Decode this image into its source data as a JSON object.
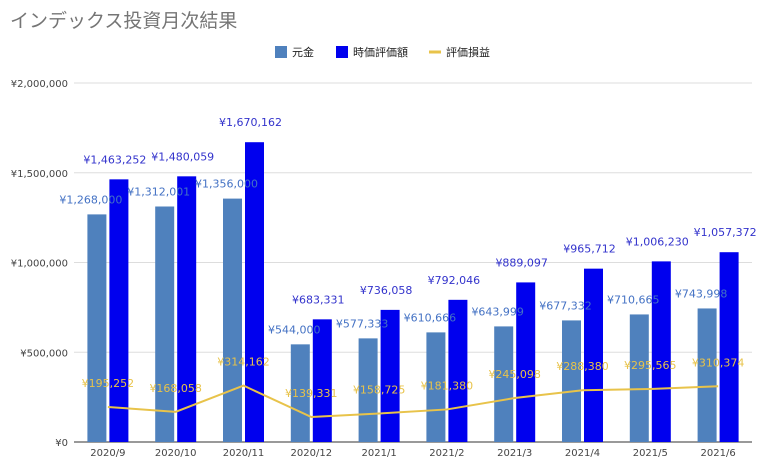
{
  "title": "インデックス投資月次結果",
  "colors": {
    "principal": "#4f81bd",
    "market_value": "#0000ee",
    "pnl": "#e8c34a",
    "principal_label": "#4472c4",
    "market_label": "#3333cc",
    "pnl_label": "#e8c34a"
  },
  "chart_data": {
    "type": "bar",
    "title": "インデックス投資月次結果",
    "categories": [
      "2020/9",
      "2020/10",
      "2020/11",
      "2020/12",
      "2021/1",
      "2021/2",
      "2021/3",
      "2021/4",
      "2021/5",
      "2021/6"
    ],
    "series": [
      {
        "name": "元金",
        "kind": "bar",
        "values": [
          1268000,
          1312001,
          1356000,
          544000,
          577333,
          610666,
          643999,
          677332,
          710665,
          743998
        ],
        "labels": [
          "¥1,268,000",
          "¥1,312,001",
          "¥1,356,000",
          "¥544,000",
          "¥577,333",
          "¥610,666",
          "¥643,999",
          "¥677,332",
          "¥710,665",
          "¥743,998"
        ]
      },
      {
        "name": "時価評価額",
        "kind": "bar",
        "values": [
          1463252,
          1480059,
          1670162,
          683331,
          736058,
          792046,
          889097,
          965712,
          1006230,
          1057372
        ],
        "labels": [
          "¥1,463,252",
          "¥1,480,059",
          "¥1,670,162",
          "¥683,331",
          "¥736,058",
          "¥792,046",
          "¥889,097",
          "¥965,712",
          "¥1,006,230",
          "¥1,057,372"
        ]
      },
      {
        "name": "評価損益",
        "kind": "line",
        "values": [
          195252,
          168058,
          314162,
          139331,
          158725,
          181380,
          245098,
          288380,
          295565,
          310374
        ],
        "labels": [
          "¥195,252",
          "¥168,058",
          "¥314,162",
          "¥139,331",
          "¥158,725",
          "¥181,380",
          "¥245,098",
          "¥288,380",
          "¥295,565",
          "¥310,374"
        ]
      }
    ],
    "ylim": [
      0,
      2000000
    ],
    "yticks": [
      0,
      500000,
      1000000,
      1500000,
      2000000
    ],
    "ytick_labels": [
      "¥0",
      "¥500,000",
      "¥1,000,000",
      "¥1,500,000",
      "¥2,000,000"
    ],
    "grid": true,
    "legend_position": "top-center"
  }
}
